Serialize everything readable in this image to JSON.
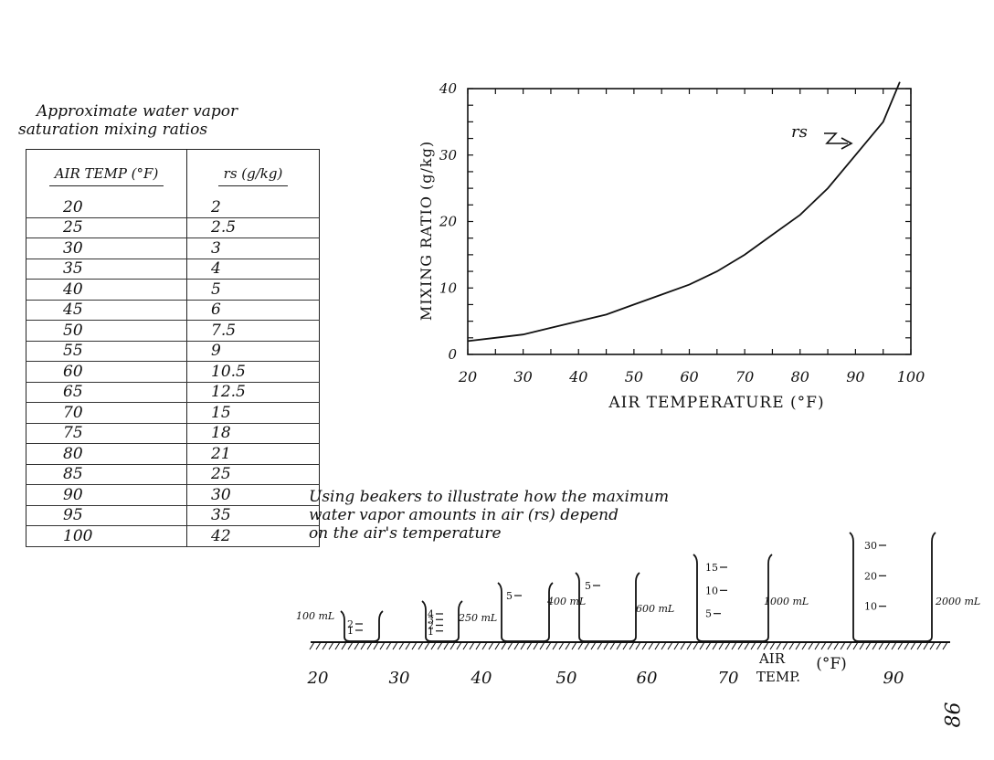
{
  "table": {
    "title_line1": "Approximate water vapor",
    "title_line2": "saturation mixing ratios",
    "col1_header": "AIR TEMP (°F)",
    "col2_header": "rs (g/kg)",
    "rows": [
      {
        "t": "20",
        "rs": "2"
      },
      {
        "t": "25",
        "rs": "2.5"
      },
      {
        "t": "30",
        "rs": "3"
      },
      {
        "t": "35",
        "rs": "4"
      },
      {
        "t": "40",
        "rs": "5"
      },
      {
        "t": "45",
        "rs": "6"
      },
      {
        "t": "50",
        "rs": "7.5"
      },
      {
        "t": "55",
        "rs": "9"
      },
      {
        "t": "60",
        "rs": "10.5"
      },
      {
        "t": "65",
        "rs": "12.5"
      },
      {
        "t": "70",
        "rs": "15"
      },
      {
        "t": "75",
        "rs": "18"
      },
      {
        "t": "80",
        "rs": "21"
      },
      {
        "t": "85",
        "rs": "25"
      },
      {
        "t": "90",
        "rs": "30"
      },
      {
        "t": "95",
        "rs": "35"
      },
      {
        "t": "100",
        "rs": "42"
      }
    ]
  },
  "chart_data": {
    "type": "line",
    "title": "",
    "xlabel": "AIR TEMPERATURE (°F)",
    "ylabel": "MIXING RATIO (g/kg)",
    "xlim": [
      20,
      100
    ],
    "ylim": [
      0,
      40
    ],
    "x_ticks": [
      "20",
      "30",
      "40",
      "50",
      "60",
      "70",
      "80",
      "90",
      "100"
    ],
    "y_ticks": [
      "0",
      "10",
      "20",
      "30",
      "40"
    ],
    "series": [
      {
        "name": "rs",
        "x": [
          20,
          25,
          30,
          35,
          40,
          45,
          50,
          55,
          60,
          65,
          70,
          75,
          80,
          85,
          90,
          95,
          98
        ],
        "y": [
          2,
          2.5,
          3,
          4,
          5,
          6,
          7.5,
          9,
          10.5,
          12.5,
          15,
          18,
          21,
          25,
          30,
          35,
          41
        ]
      }
    ],
    "annotation": "rs"
  },
  "beakers": {
    "caption_line1": "Using beakers to illustrate how the maximum",
    "caption_line2": "water vapor amounts in air (rs) depend",
    "caption_line3": "on the air's temperature",
    "axis_label_line1": "AIR",
    "axis_label_line2": "TEMP.",
    "axis_unit": "(°F)",
    "temps": [
      "20",
      "30",
      "40",
      "50",
      "60",
      "70",
      "90"
    ],
    "items": [
      {
        "volume": "100 mL",
        "marks": [
          "2",
          "1"
        ]
      },
      {
        "volume": "250 mL",
        "marks": [
          "4",
          "3",
          "2",
          "1"
        ]
      },
      {
        "volume": "400 mL",
        "marks": [
          "5"
        ]
      },
      {
        "volume": "600 mL",
        "marks": [
          "5"
        ]
      },
      {
        "volume": "1000 mL",
        "marks": [
          "15",
          "10",
          "5"
        ]
      },
      {
        "volume": "2000 mL",
        "marks": [
          "30",
          "20",
          "10"
        ]
      }
    ]
  },
  "page_number": "86"
}
